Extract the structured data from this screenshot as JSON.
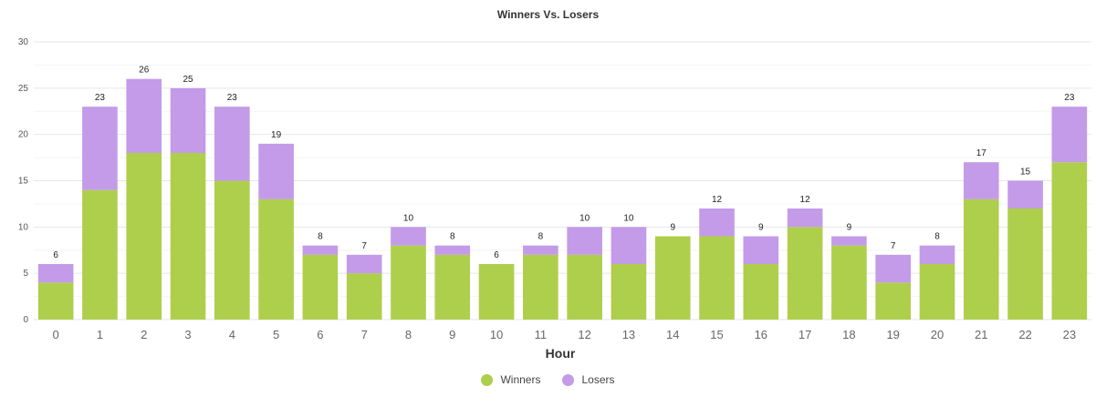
{
  "chart_data": {
    "type": "bar",
    "stacked": true,
    "title": "Winners Vs. Losers",
    "xlabel": "Hour",
    "ylabel": "",
    "ylim": [
      0,
      30
    ],
    "yticks": [
      0,
      5,
      10,
      15,
      20,
      25,
      30
    ],
    "grid": true,
    "legend_position": "bottom",
    "categories": [
      "0",
      "1",
      "2",
      "3",
      "4",
      "5",
      "6",
      "7",
      "8",
      "9",
      "10",
      "11",
      "12",
      "13",
      "14",
      "15",
      "16",
      "17",
      "18",
      "19",
      "20",
      "21",
      "22",
      "23"
    ],
    "series": [
      {
        "name": "Winners",
        "color": "#aecf4c",
        "values": [
          4,
          14,
          18,
          18,
          15,
          13,
          7,
          5,
          8,
          7,
          6,
          7,
          7,
          6,
          9,
          9,
          6,
          10,
          8,
          4,
          6,
          13,
          12,
          17
        ]
      },
      {
        "name": "Losers",
        "color": "#c39be8",
        "values": [
          2,
          9,
          8,
          7,
          8,
          6,
          1,
          2,
          2,
          1,
          0,
          1,
          3,
          4,
          0,
          3,
          3,
          2,
          1,
          3,
          2,
          4,
          3,
          6
        ]
      }
    ],
    "totals": [
      6,
      23,
      26,
      25,
      23,
      19,
      8,
      7,
      10,
      8,
      6,
      8,
      10,
      10,
      9,
      12,
      9,
      12,
      9,
      7,
      8,
      17,
      15,
      23
    ]
  }
}
